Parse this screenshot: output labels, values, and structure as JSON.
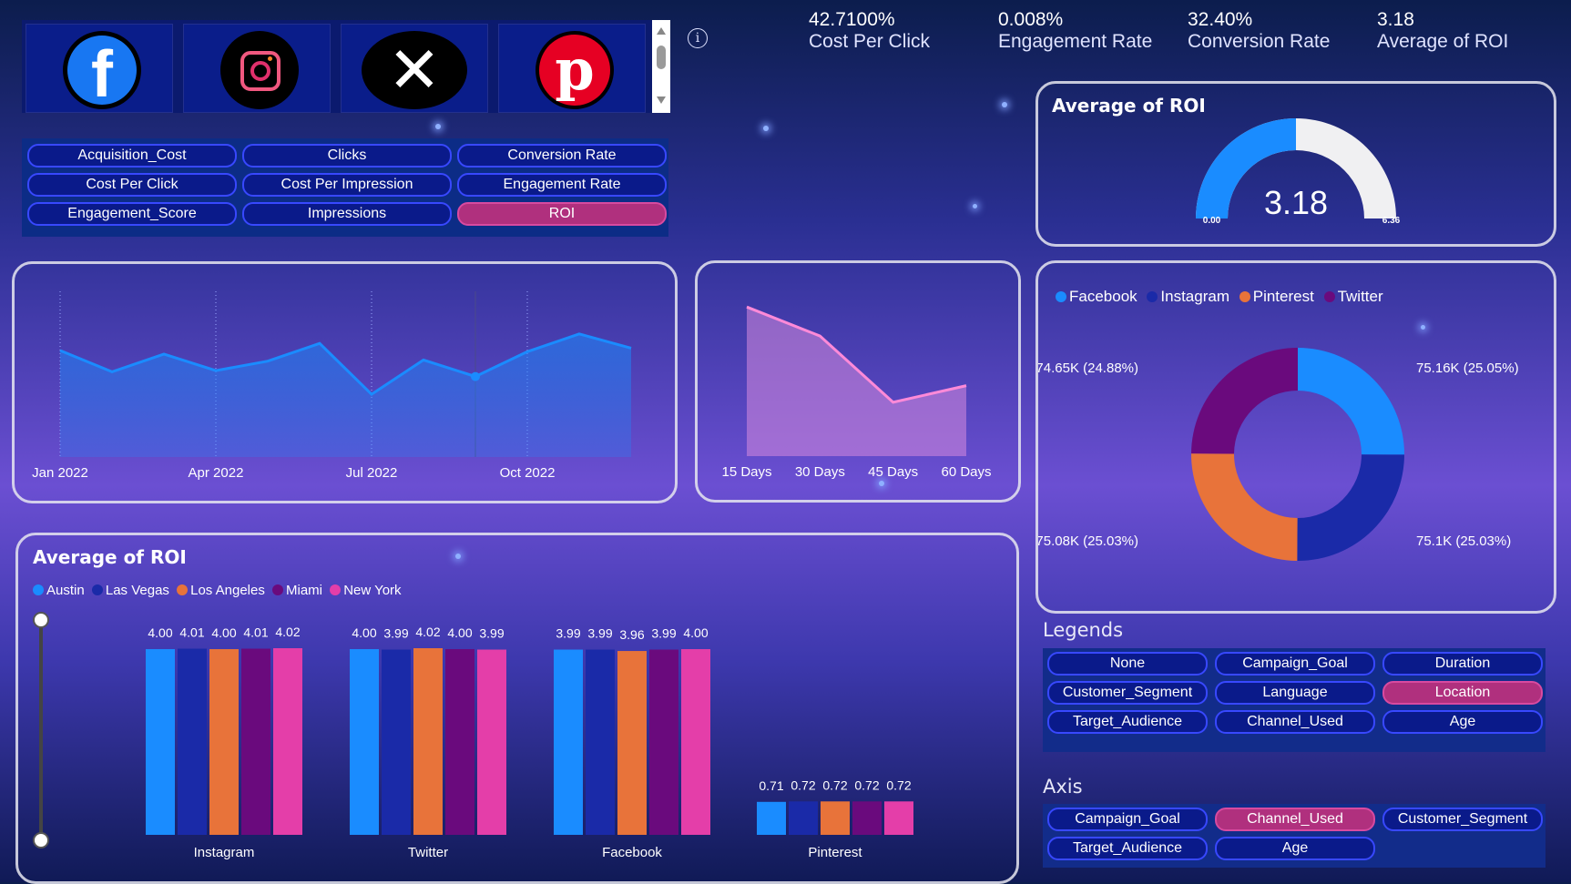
{
  "social_tiles": [
    {
      "name": "Facebook",
      "icon": "facebook-icon",
      "color": "#1877f2"
    },
    {
      "name": "Instagram",
      "icon": "instagram-icon",
      "color": "#e1306c"
    },
    {
      "name": "X",
      "icon": "x-icon",
      "color": "#000000"
    },
    {
      "name": "Pinterest",
      "icon": "pinterest-icon",
      "color": "#e60023"
    }
  ],
  "metric_buttons": [
    {
      "label": "Acquisition_Cost",
      "selected": false
    },
    {
      "label": "Clicks",
      "selected": false
    },
    {
      "label": "Conversion Rate",
      "selected": false
    },
    {
      "label": "Cost Per Click",
      "selected": false
    },
    {
      "label": "Cost Per Impression",
      "selected": false
    },
    {
      "label": "Engagement Rate",
      "selected": false
    },
    {
      "label": "Engagement_Score",
      "selected": false
    },
    {
      "label": "Impressions",
      "selected": false
    },
    {
      "label": "ROI",
      "selected": true
    }
  ],
  "info_icon": "info-icon",
  "kpis": [
    {
      "value": "42.7100%",
      "label": "Cost Per Click"
    },
    {
      "value": "0.008%",
      "label": "Engagement Rate"
    },
    {
      "value": "32.40%",
      "label": "Conversion Rate"
    },
    {
      "value": "3.18",
      "label": "Average of ROI"
    }
  ],
  "gauge": {
    "title": "Average of ROI",
    "value": 3.18,
    "value_label": "3.18",
    "min": 0,
    "max": 6.36,
    "min_label": "0.00",
    "max_label": "6.36"
  },
  "donut_legend": [
    {
      "name": "Facebook",
      "color": "#1a8cff"
    },
    {
      "name": "Instagram",
      "color": "#1a2aa8"
    },
    {
      "name": "Pinterest",
      "color": "#e8733a"
    },
    {
      "name": "Twitter",
      "color": "#6a0a7d"
    }
  ],
  "legends_section": {
    "title": "Legends",
    "buttons": [
      {
        "label": "None",
        "selected": false
      },
      {
        "label": "Campaign_Goal",
        "selected": false
      },
      {
        "label": "Duration",
        "selected": false
      },
      {
        "label": "Customer_Segment",
        "selected": false
      },
      {
        "label": "Language",
        "selected": false
      },
      {
        "label": "Location",
        "selected": true
      },
      {
        "label": "Target_Audience",
        "selected": false
      },
      {
        "label": "Channel_Used",
        "selected": false
      },
      {
        "label": "Age",
        "selected": false
      }
    ]
  },
  "axis_section": {
    "title": "Axis",
    "buttons": [
      {
        "label": "Campaign_Goal",
        "selected": false
      },
      {
        "label": "Channel_Used",
        "selected": true
      },
      {
        "label": "Customer_Segment",
        "selected": false
      },
      {
        "label": "Target_Audience",
        "selected": false
      },
      {
        "label": "Age",
        "selected": false
      }
    ]
  },
  "bar_panel_title": "Average of ROI",
  "chart_data": [
    {
      "type": "area",
      "title": "",
      "x_ticks": [
        "Jan 2022",
        "Apr 2022",
        "Jul 2022",
        "Oct 2022"
      ],
      "x": [
        "Jan 2022",
        "Feb 2022",
        "Mar 2022",
        "Apr 2022",
        "May 2022",
        "Jun 2022",
        "Jul 2022",
        "Aug 2022",
        "Sep 2022",
        "Oct 2022",
        "Nov 2022",
        "Dec 2022"
      ],
      "values": [
        3.2,
        3.02,
        3.17,
        3.03,
        3.11,
        3.26,
        2.83,
        3.12,
        2.98,
        3.19,
        3.34,
        3.22
      ],
      "ylim": [
        2.3,
        3.7
      ],
      "color": "#1a8cff"
    },
    {
      "type": "area",
      "title": "",
      "categories": [
        "15 Days",
        "30 Days",
        "45 Days",
        "60 Days"
      ],
      "values": [
        3.26,
        3.19,
        3.03,
        3.07
      ],
      "ylim": [
        2.9,
        3.3
      ],
      "color": "#ff8ad8"
    },
    {
      "type": "pie",
      "title": "",
      "labels": [
        "Facebook",
        "Instagram",
        "Pinterest",
        "Twitter"
      ],
      "values": [
        75.16,
        75.1,
        75.08,
        74.65
      ],
      "data_labels": [
        "75.16K (25.05%)",
        "75.1K (25.03%)",
        "75.08K (25.03%)",
        "74.65K (24.88%)"
      ],
      "colors": [
        "#1a8cff",
        "#1a2aa8",
        "#e8733a",
        "#6a0a7d"
      ]
    },
    {
      "type": "bar",
      "title": "Average of ROI",
      "categories": [
        "Instagram",
        "Twitter",
        "Facebook",
        "Pinterest"
      ],
      "legend_placement": "top-left",
      "ylim": [
        0,
        4.5
      ],
      "series": [
        {
          "name": "Austin",
          "color": "#1a8cff",
          "values": [
            4.0,
            4.0,
            3.99,
            0.71
          ],
          "labels": [
            "4.00",
            "4.00",
            "3.99",
            "0.71"
          ]
        },
        {
          "name": "Las Vegas",
          "color": "#1a2aa8",
          "values": [
            4.01,
            3.99,
            3.99,
            0.72
          ],
          "labels": [
            "4.01",
            "3.99",
            "3.99",
            "0.72"
          ]
        },
        {
          "name": "Los Angeles",
          "color": "#e8733a",
          "values": [
            4.0,
            4.02,
            3.96,
            0.72
          ],
          "labels": [
            "4.00",
            "4.02",
            "3.96",
            "0.72"
          ]
        },
        {
          "name": "Miami",
          "color": "#6a0a7d",
          "values": [
            4.01,
            4.0,
            3.99,
            0.72
          ],
          "labels": [
            "4.01",
            "4.00",
            "3.99",
            "0.72"
          ]
        },
        {
          "name": "New York",
          "color": "#e43ea9",
          "values": [
            4.02,
            3.99,
            4.0,
            0.72
          ],
          "labels": [
            "4.02",
            "3.99",
            "4.00",
            "0.72"
          ]
        }
      ]
    }
  ]
}
